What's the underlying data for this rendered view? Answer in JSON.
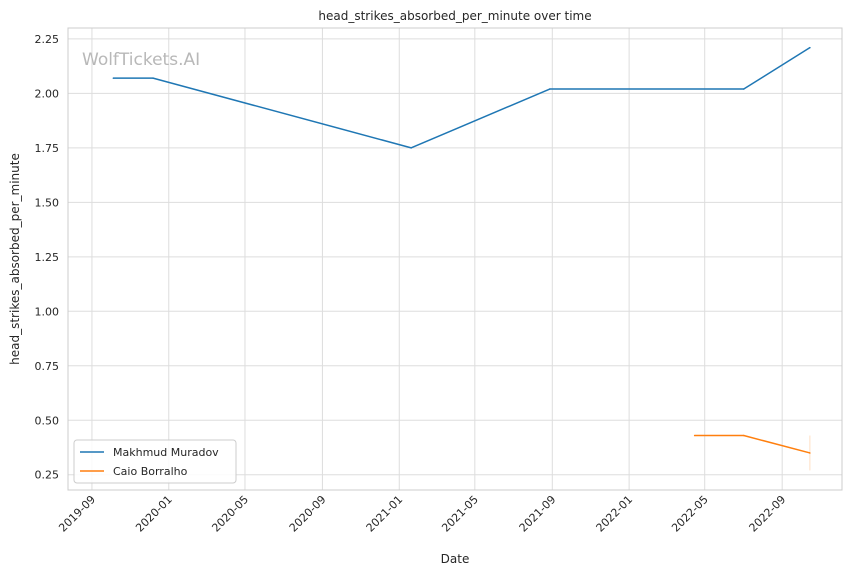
{
  "watermark": "WolfTickets.AI",
  "chart_data": {
    "type": "line",
    "title": "head_strikes_absorbed_per_minute over time",
    "xlabel": "Date",
    "ylabel": "head_strikes_absorbed_per_minute",
    "x_ticks": [
      "2019-09",
      "2020-01",
      "2020-05",
      "2020-09",
      "2021-01",
      "2021-05",
      "2021-09",
      "2022-01",
      "2022-05",
      "2022-09"
    ],
    "y_ticks": [
      "0.25",
      "0.50",
      "0.75",
      "1.00",
      "1.25",
      "1.50",
      "1.75",
      "2.00",
      "2.25"
    ],
    "ylim": [
      0.18,
      2.3
    ],
    "xlim": [
      "2019-07-25",
      "2022-12-05"
    ],
    "grid": true,
    "legend_position": "lower-left",
    "series": [
      {
        "name": "Makhmud Muradov",
        "color": "#1f77b4",
        "points": [
          {
            "x": "2019-10-05",
            "y": 2.07
          },
          {
            "x": "2019-12-07",
            "y": 2.07
          },
          {
            "x": "2021-01-20",
            "y": 1.75
          },
          {
            "x": "2021-08-28",
            "y": 2.02
          },
          {
            "x": "2022-07-02",
            "y": 2.02
          },
          {
            "x": "2022-10-15",
            "y": 2.21
          }
        ]
      },
      {
        "name": "Caio Borralho",
        "color": "#ff7f0e",
        "points": [
          {
            "x": "2022-04-15",
            "y": 0.43
          },
          {
            "x": "2022-07-02",
            "y": 0.43
          },
          {
            "x": "2022-10-15",
            "y": 0.35
          }
        ]
      }
    ]
  }
}
